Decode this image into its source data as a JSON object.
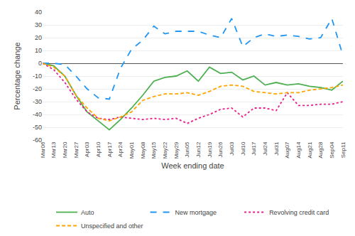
{
  "chart_data": {
    "type": "line",
    "categories": [
      "Mar06",
      "Mar13",
      "Mar20",
      "Mar27",
      "Apr03",
      "Apr10",
      "Apr17",
      "Apr24",
      "May01",
      "May08",
      "May15",
      "May22",
      "May29",
      "Jun05",
      "Jun12",
      "Jun19",
      "Jun26",
      "Jul03",
      "Jul10",
      "Jul17",
      "Jul24",
      "Jul31",
      "Aug07",
      "Aug14",
      "Aug21",
      "Aug28",
      "Sep04",
      "Sep11"
    ],
    "series": [
      {
        "name": "Auto",
        "color": "#4CAF50",
        "line_style": "solid",
        "values": [
          0,
          -2,
          -10,
          -25,
          -38,
          -45,
          -52,
          -44,
          -35,
          -25,
          -14,
          -11,
          -10,
          -6,
          -14,
          -3,
          -8,
          -7,
          -13,
          -10,
          -17,
          -15,
          -17,
          -16,
          -18,
          -19,
          -21,
          -14
        ]
      },
      {
        "name": "New mortgage",
        "color": "#2196F3",
        "line_style": "dashed",
        "values": [
          0,
          0,
          -1,
          -10,
          -20,
          -27,
          -28,
          -4,
          11,
          18,
          29,
          23,
          25,
          25,
          25,
          22,
          20,
          35,
          13,
          20,
          23,
          21,
          22,
          21,
          19,
          20,
          35,
          6
        ]
      },
      {
        "name": "Revolving credit card",
        "color": "#E91E8C",
        "line_style": "dotted",
        "values": [
          0,
          -5,
          -15,
          -28,
          -38,
          -43,
          -44,
          -42,
          -43,
          -44,
          -43,
          -44,
          -43,
          -47,
          -43,
          -40,
          -36,
          -35,
          -42,
          -35,
          -35,
          -37,
          -23,
          -33,
          -33,
          -32,
          -32,
          -30
        ]
      },
      {
        "name": "Unspecified and other",
        "color": "#FFA500",
        "line_style": "short_dashed",
        "values": [
          0,
          -3,
          -10,
          -25,
          -35,
          -43,
          -45,
          -42,
          -38,
          -29,
          -26,
          -24,
          -24,
          -23,
          -25,
          -22,
          -18,
          -17,
          -18,
          -22,
          -23,
          -24,
          -23,
          -23,
          -21,
          -20,
          -19,
          -17
        ]
      }
    ],
    "ylim": [
      -60,
      40
    ],
    "yticks": [
      -60,
      -50,
      -40,
      -30,
      -20,
      -10,
      0,
      10,
      20,
      30,
      40
    ],
    "ylabel": "Percentage change",
    "xlabel": "Week ending date",
    "grid": true,
    "legend": "bottom"
  }
}
